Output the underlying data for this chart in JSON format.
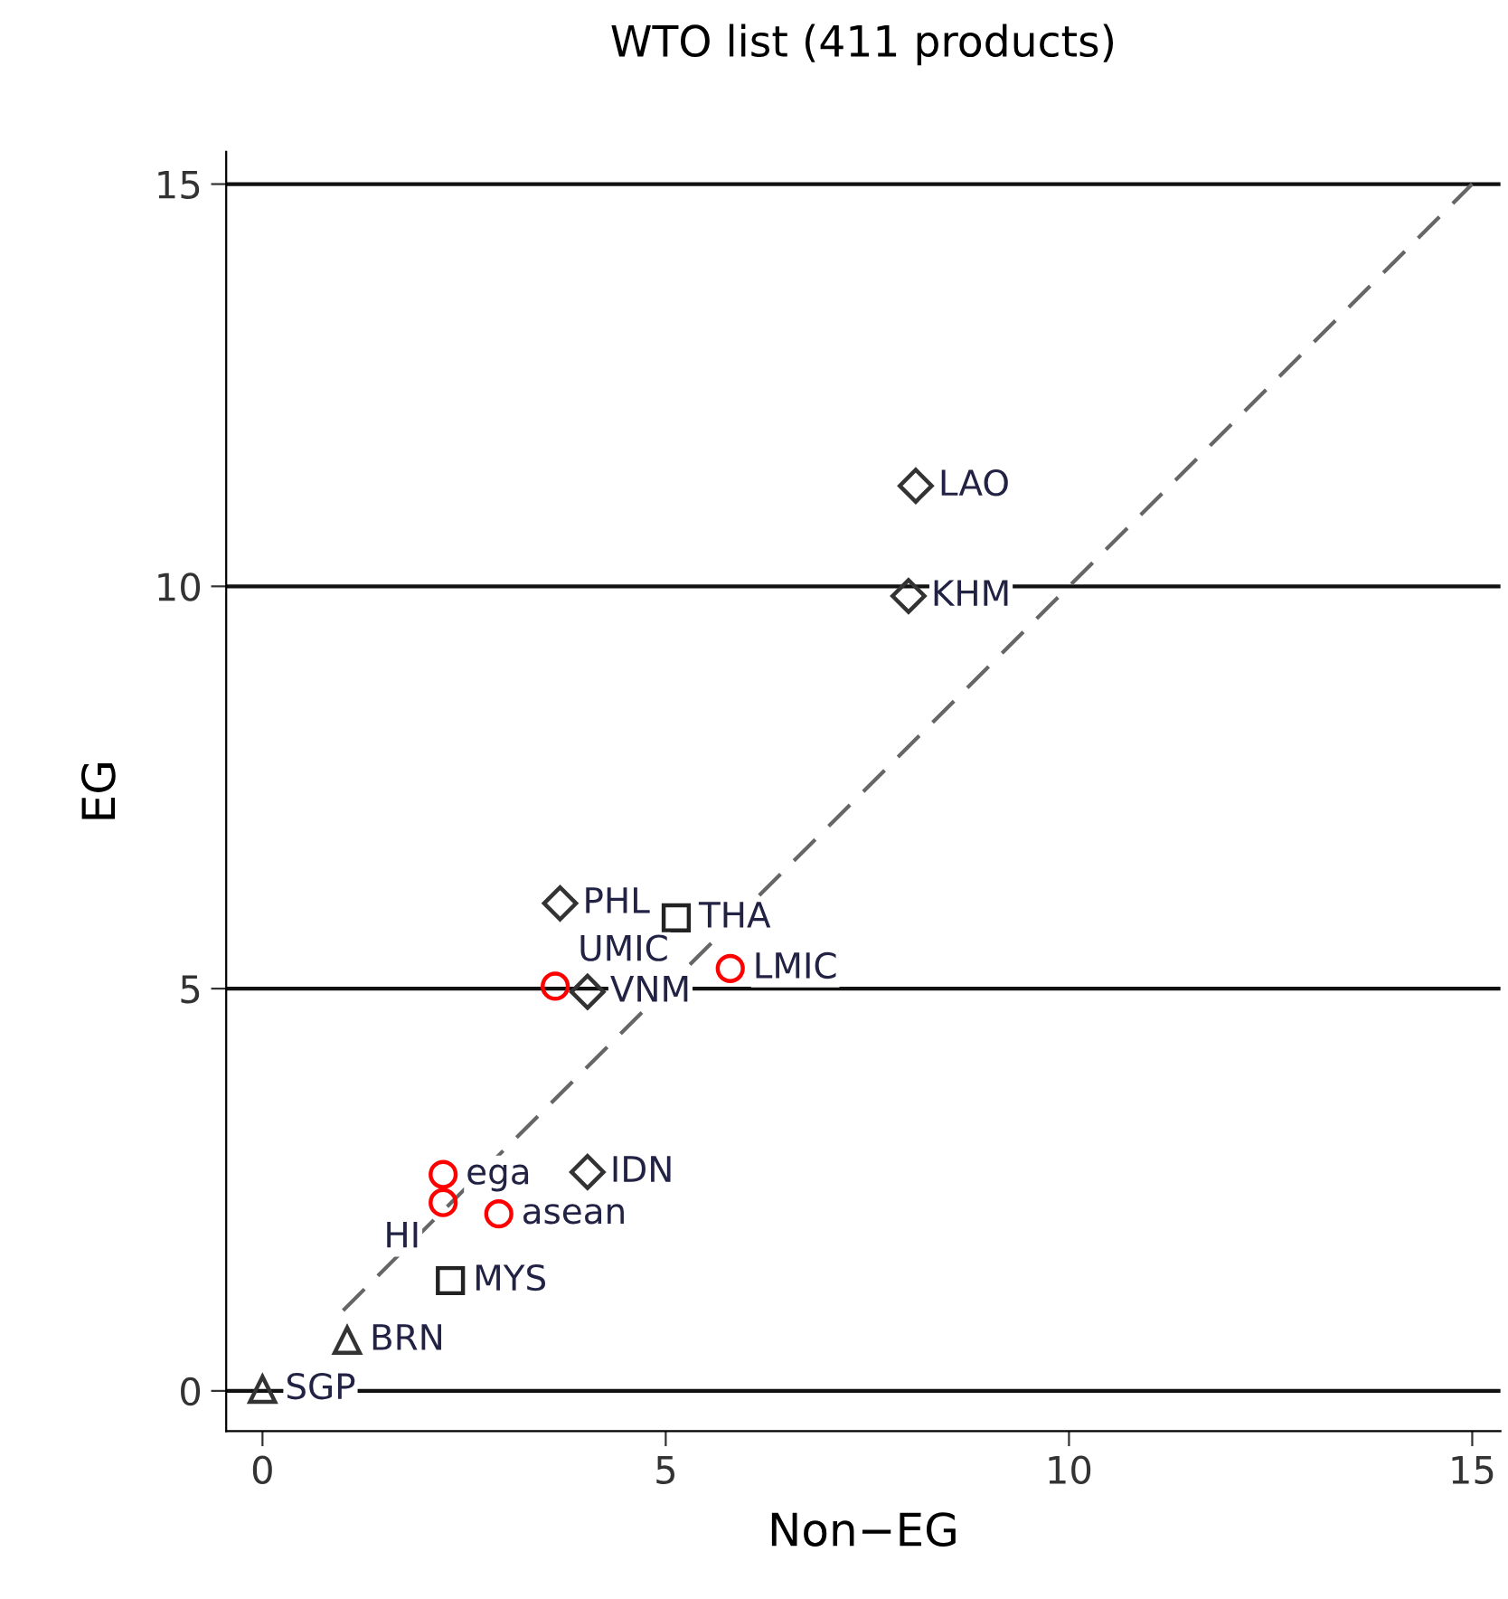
{
  "chart_data": {
    "type": "scatter",
    "title": "WTO list (411 products)",
    "xlabel": "Non−EG",
    "ylabel": "EG",
    "xlim": [
      -0.45,
      15.35
    ],
    "ylim": [
      -0.5,
      15.4
    ],
    "xticks": [
      0,
      5,
      10,
      15
    ],
    "yticks": [
      0,
      5,
      10,
      15
    ],
    "grid": "y",
    "legend": false,
    "series": [
      {
        "marker": "diamond",
        "color": "#333333",
        "x": [
          8.1,
          8.01,
          3.69,
          4.03,
          4.03
        ],
        "values": [
          11.25,
          9.88,
          6.06,
          4.96,
          2.72
        ]
      },
      {
        "marker": "square",
        "color": "#222222",
        "x": [
          5.13,
          2.33
        ],
        "values": [
          5.88,
          1.37
        ]
      },
      {
        "marker": "triangle",
        "color": "#333333",
        "x": [
          1.05,
          0
        ],
        "values": [
          0.63,
          0.02
        ]
      },
      {
        "marker": "circle",
        "color": "#ff0000",
        "x": [
          5.8,
          3.63,
          2.24,
          2.24,
          2.93
        ],
        "values": [
          5.25,
          5.03,
          2.69,
          2.34,
          2.2
        ]
      },
      {
        "type": "line",
        "line_style": "dashed",
        "color": "#666666",
        "x": [
          1,
          15
        ],
        "values": [
          1,
          15
        ]
      }
    ],
    "annotations": [
      {
        "text": "LAO",
        "x": 8.1,
        "y": 11.25
      },
      {
        "text": "KHM",
        "x": 8.01,
        "y": 9.88
      },
      {
        "text": "PHL",
        "x": 3.69,
        "y": 6.06
      },
      {
        "text": "THA",
        "x": 5.13,
        "y": 5.88
      },
      {
        "text": "LMIC",
        "x": 5.8,
        "y": 5.25
      },
      {
        "text": "UMIC",
        "x": 3.63,
        "y": 5.03
      },
      {
        "text": "VNM",
        "x": 4.03,
        "y": 4.96
      },
      {
        "text": "IDN",
        "x": 4.03,
        "y": 2.72
      },
      {
        "text": "ega",
        "x": 2.24,
        "y": 2.69
      },
      {
        "text": "HI",
        "x": 2.24,
        "y": 2.34
      },
      {
        "text": "asean",
        "x": 2.93,
        "y": 2.2
      },
      {
        "text": "MYS",
        "x": 2.33,
        "y": 1.37
      },
      {
        "text": "BRN",
        "x": 1.05,
        "y": 0.63
      },
      {
        "text": "SGP",
        "x": 0,
        "y": 0.02
      }
    ]
  }
}
